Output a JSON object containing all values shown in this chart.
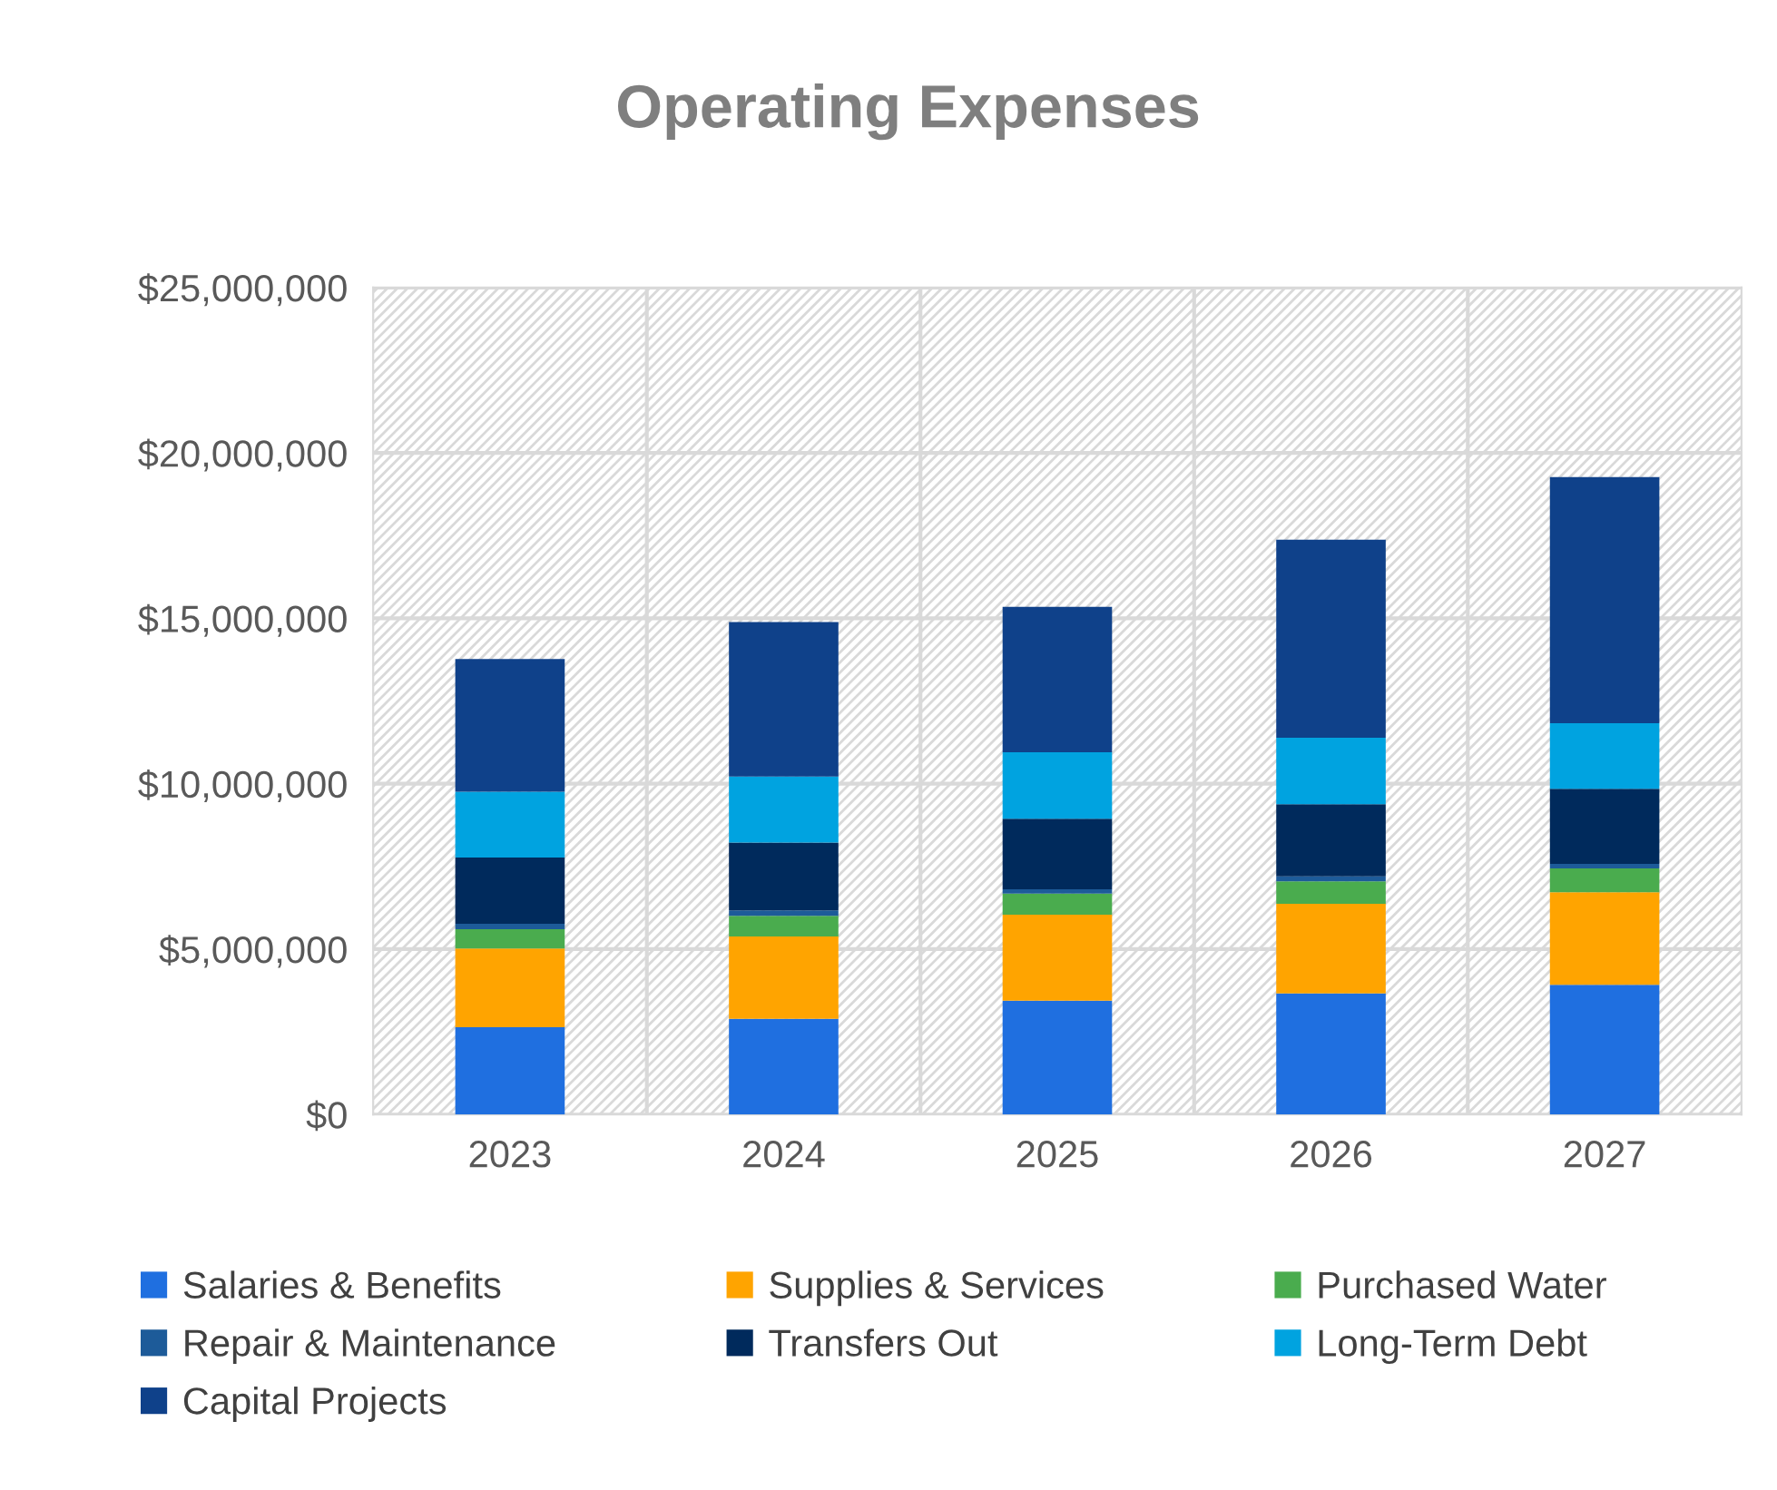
{
  "chart_data": {
    "type": "bar",
    "title": "Operating Expenses",
    "stacked": true,
    "categories": [
      "2023",
      "2024",
      "2025",
      "2026",
      "2027"
    ],
    "series": [
      {
        "name": "Salaries & Benefits",
        "color": "#1f6fe0",
        "values": [
          2640000,
          2890000,
          3440000,
          3660000,
          3920000
        ]
      },
      {
        "name": "Supplies & Services",
        "color": "#ffa400",
        "values": [
          2380000,
          2490000,
          2600000,
          2710000,
          2800000
        ]
      },
      {
        "name": "Purchased Water",
        "color": "#4aac4e",
        "values": [
          580000,
          630000,
          640000,
          680000,
          720000
        ]
      },
      {
        "name": "Repair & Maintenance",
        "color": "#1d5b99",
        "values": [
          170000,
          160000,
          130000,
          150000,
          140000
        ]
      },
      {
        "name": "Transfers Out",
        "color": "#002a5c",
        "values": [
          2000000,
          2050000,
          2130000,
          2180000,
          2270000
        ]
      },
      {
        "name": "Long-Term Debt",
        "color": "#00a3e0",
        "values": [
          1990000,
          2000000,
          2010000,
          2010000,
          1980000
        ]
      },
      {
        "name": "Capital Projects",
        "color": "#0f418a",
        "values": [
          4010000,
          4670000,
          4400000,
          5990000,
          7440000
        ]
      }
    ],
    "ylim": [
      0,
      25000000
    ],
    "yticks": [
      {
        "value": 0,
        "label": "$0"
      },
      {
        "value": 5000000,
        "label": "$5,000,000"
      },
      {
        "value": 10000000,
        "label": "$10,000,000"
      },
      {
        "value": 15000000,
        "label": "$15,000,000"
      },
      {
        "value": 20000000,
        "label": "$20,000,000"
      },
      {
        "value": 25000000,
        "label": "$25,000,000"
      }
    ],
    "grid": true,
    "legend": "bottom"
  }
}
